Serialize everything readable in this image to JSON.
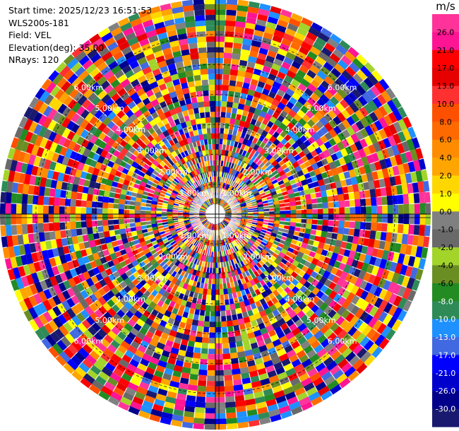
{
  "info": {
    "start_time": "Start time: 2025/12/23 16:51:53",
    "instrument": "WLS200s-181",
    "field": "Field: VEL",
    "elevation": "Elevation(deg): 35.00",
    "nrays": "NRays: 120"
  },
  "chart_data": {
    "type": "ppi",
    "field": "VEL",
    "elevation_deg": 35.0,
    "nrays": 120,
    "range_rings_km": [
      1.0,
      2.0,
      3.0,
      4.0,
      5.0,
      6.0
    ],
    "ring_labels": [
      "1.00km",
      "2.00km",
      "3.00km",
      "4.00km",
      "5.00km",
      "6.00km"
    ],
    "max_range_km": 7.2,
    "colorbar": {
      "unit": "m/s",
      "labels": [
        "26.0",
        "21.0",
        "17.0",
        "13.0",
        "10.0",
        "8.0",
        "6.0",
        "4.0",
        "2.0",
        "1.0",
        "0.0",
        "-1.0",
        "-2.0",
        "-4.0",
        "-6.0",
        "-8.0",
        "-10.0",
        "-13.0",
        "-17.0",
        "-21.0",
        "-26.0",
        "-30.0"
      ],
      "colors": [
        "#ff3399",
        "#ff1493",
        "#ff0000",
        "#e60000",
        "#ff3030",
        "#ff5000",
        "#ff6a00",
        "#ff8c00",
        "#ffa500",
        "#ffd700",
        "#ffff00",
        "#808080",
        "#696969",
        "#a2d42a",
        "#6b8e23",
        "#228b22",
        "#2e8b57",
        "#1e90ff",
        "#4169e1",
        "#0000ff",
        "#0000cd",
        "#00008b",
        "#191970"
      ]
    }
  }
}
